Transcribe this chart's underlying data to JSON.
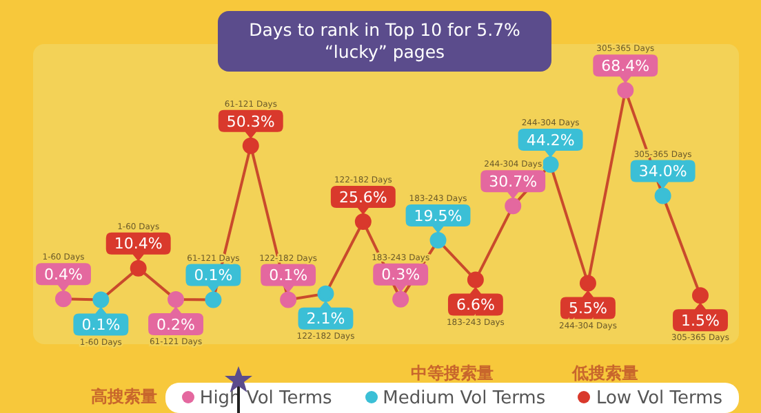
{
  "chart_data": {
    "type": "line",
    "title": "Days to rank in Top 10 for 5.7% “lucky” pages",
    "categories": [
      null,
      null,
      null,
      null,
      null,
      null,
      null,
      null,
      null,
      null,
      null,
      null,
      null,
      null,
      null,
      null,
      null,
      null
    ],
    "series": [
      {
        "color": "#c94a2c",
        "values": [
          0.4,
          0.1,
          10.4,
          0.2,
          0.1,
          50.3,
          0.1,
          2.1,
          25.6,
          0.3,
          19.5,
          6.6,
          30.7,
          44.2,
          5.5,
          68.4,
          34.0,
          1.5
        ],
        "colors": [
          "#e4689f",
          "#3bbfd6",
          "#d9392c",
          "#e4689f",
          "#3bbfd6",
          "#d9392c",
          "#e4689f",
          "#3bbfd6",
          "#d9392c",
          "#e4689f",
          "#3bbfd6",
          "#d9392c",
          "#e4689f",
          "#3bbfd6",
          "#d9392c",
          "#e4689f",
          "#3bbfd6",
          "#d9392c"
        ],
        "value_labels": [
          "0.4%",
          "0.1%",
          "10.4%",
          "0.2%",
          "0.1%",
          "50.3%",
          "0.1%",
          "2.1%",
          "25.6%",
          "0.3%",
          "19.5%",
          "6.6%",
          "30.7%",
          "44.2%",
          "5.5%",
          "68.4%",
          "34.0%",
          "1.5%"
        ]
      }
    ],
    "annotations": [
      "高搜索量",
      "中等搜索量",
      "低搜索量",
      "High Vol Terms",
      "Medium Vol Terms",
      "Low Vol Terms",
      "1-60 Days",
      "1-60 Days",
      "1-60 Days",
      "61-121 Days",
      "61-121 Days",
      "61-121 Days",
      "122-182 Days",
      "122-182 Days",
      "122-182 Days",
      "183-243 Days",
      "183-243 Days",
      "183-243 Days",
      "244-304 Days",
      "244-304 Days",
      "244-304 Days",
      "305-365 Days",
      "305-365 Days",
      "305-365 Days"
    ],
    "marker": "circle"
  }
}
